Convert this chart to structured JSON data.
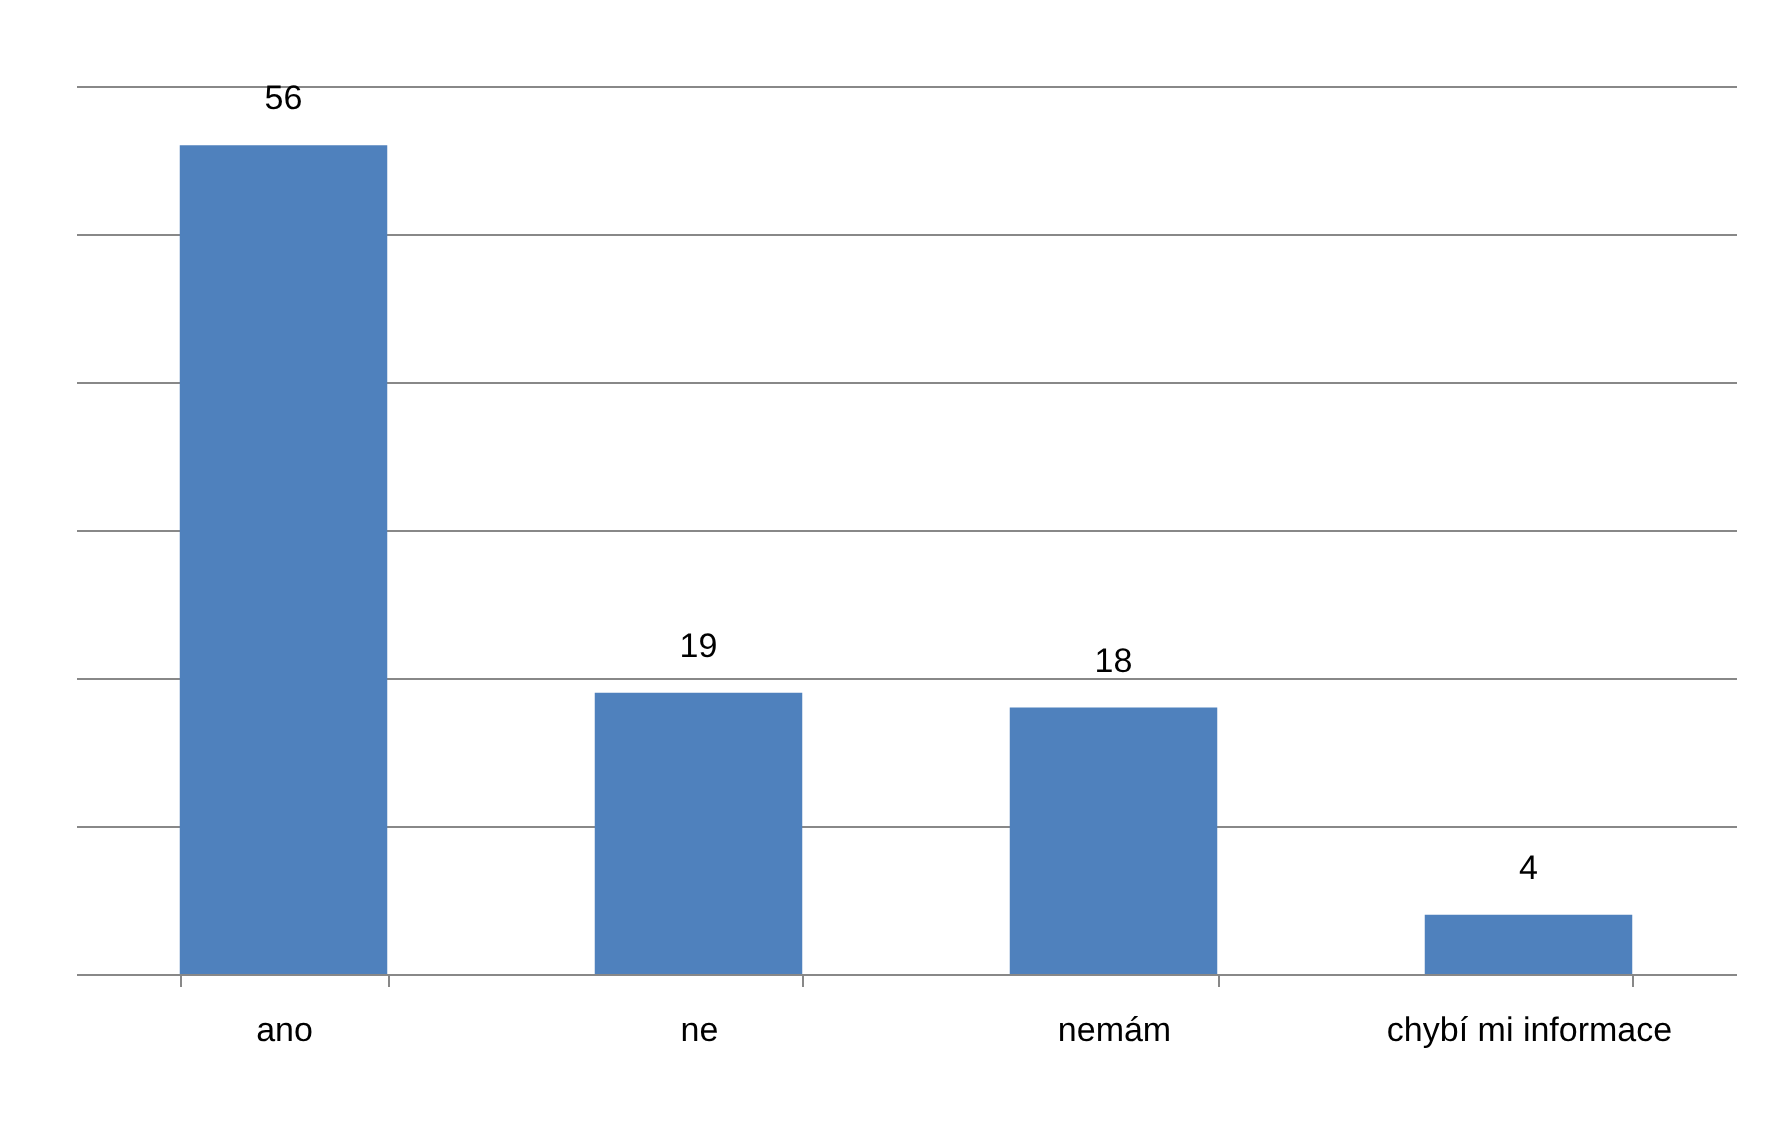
{
  "chart_data": {
    "type": "bar",
    "categories": [
      "ano",
      "ne",
      "nemám",
      "chybí mi informace"
    ],
    "values": [
      56,
      19,
      18,
      4
    ],
    "color": "#4f81bd",
    "ylim": [
      0,
      60
    ],
    "yticks": [
      {
        "value": 0,
        "label": null
      },
      {
        "value": 10,
        "label": null
      },
      {
        "value": 20,
        "label": null
      },
      {
        "value": 30,
        "label": null
      },
      {
        "value": 40,
        "label": null
      },
      {
        "value": 50,
        "label": null
      },
      {
        "value": 60,
        "label": null
      }
    ],
    "grid": "y",
    "tick_labels": "x",
    "data_labels": true
  }
}
